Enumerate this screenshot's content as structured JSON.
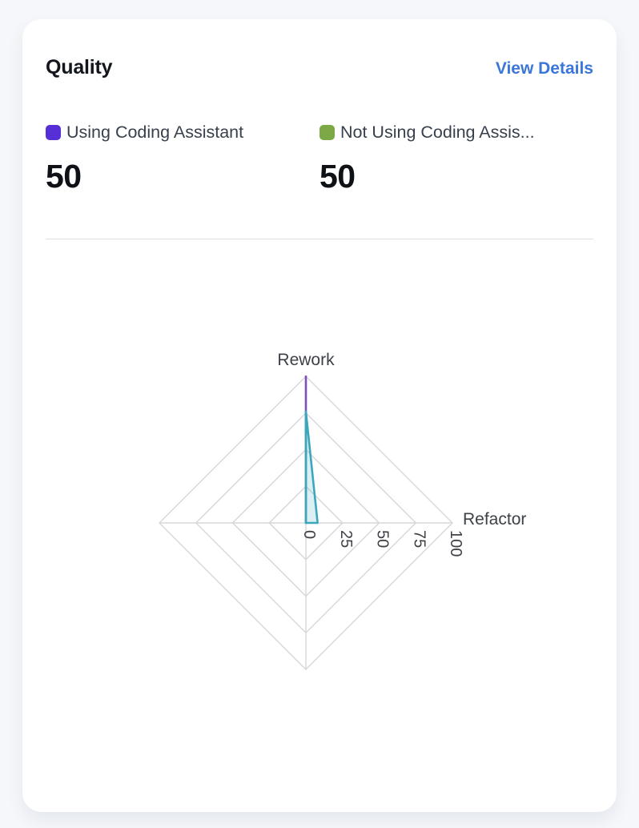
{
  "card": {
    "title": "Quality",
    "view_details_label": "View Details",
    "legend": [
      {
        "label": "Using Coding Assistant",
        "value": "50",
        "swatch_color": "#5630d6"
      },
      {
        "label": "Not Using Coding Assis...",
        "value": "50",
        "swatch_color": "#7ca846"
      }
    ]
  },
  "colors": {
    "page_background": "#f5f7fb",
    "card_background": "#ffffff",
    "title_text": "#13161d",
    "link_blue": "#3b76d9",
    "legend_text": "#39404d",
    "value_text": "#0e1116",
    "divider": "#dedfe2"
  },
  "chart_data": {
    "type": "radar",
    "title": "",
    "axes": [
      "Rework",
      "Refactor",
      "",
      ""
    ],
    "max": 100,
    "rings": [
      25,
      50,
      75,
      100
    ],
    "tick_labels": [
      "0",
      "25",
      "50",
      "75",
      "100"
    ],
    "grid_color": "#d7d7da",
    "axis_label_color": "#3d4148",
    "tick_label_color": "#3f4147",
    "legend_position": "top",
    "series": [
      {
        "name": "Using Coding Assistant",
        "color": "#7d4fb8",
        "fill": "rgba(125,79,184,0.15)",
        "values": [
          100,
          0,
          0,
          0
        ]
      },
      {
        "name": "Not Using Coding Assistant",
        "color": "#3ba7bd",
        "fill": "rgba(59,167,189,0.18)",
        "values": [
          76,
          8,
          0,
          0
        ]
      }
    ]
  }
}
